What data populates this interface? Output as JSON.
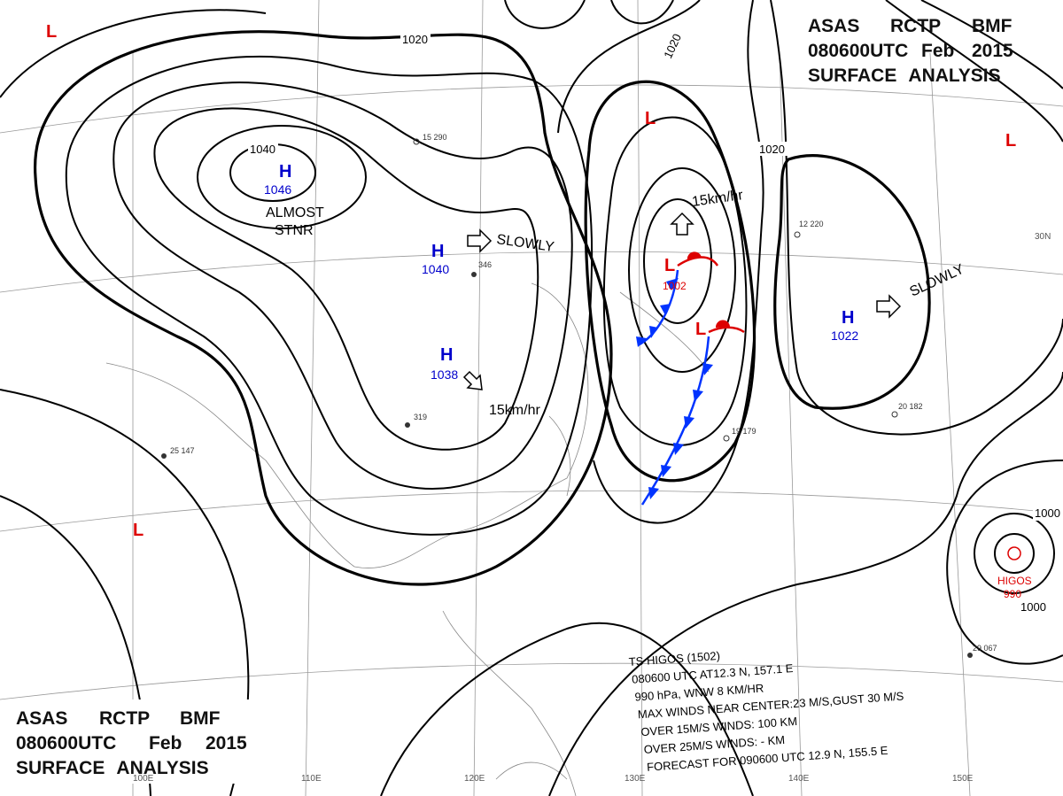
{
  "header_top": {
    "line1": [
      "ASAS",
      "RCTP",
      "BMF"
    ],
    "line2": [
      "080600UTC",
      "Feb",
      "2015"
    ],
    "line3": "SURFACE ANALYSIS"
  },
  "header_bottom": {
    "line1": [
      "ASAS",
      "RCTP",
      "BMF"
    ],
    "line2": [
      "080600UTC",
      "Feb",
      "2015"
    ],
    "line3": "SURFACE ANALYSIS"
  },
  "centers": [
    {
      "symbol": "H",
      "pressure": "1046"
    },
    {
      "symbol": "H",
      "pressure": "1040"
    },
    {
      "symbol": "H",
      "pressure": "1038"
    },
    {
      "symbol": "L",
      "pressure": "1002"
    },
    {
      "symbol": "H",
      "pressure": "1022"
    },
    {
      "symbol": "HIGOS",
      "pressure": "990"
    }
  ],
  "low_marks": [
    "L",
    "L",
    "L",
    "L",
    "L"
  ],
  "isobar_labels": [
    "1020",
    "1040",
    "1020",
    "1020",
    "1000",
    "1000"
  ],
  "motion_labels": [
    "ALMOST",
    "STNR",
    "SLOWLY",
    "15km/hr",
    "15km/hr",
    "SLOWLY"
  ],
  "grid_labels": [
    "100E",
    "110E",
    "120E",
    "130E",
    "140E",
    "150E",
    "30N"
  ],
  "stations": [
    "15 290",
    "346",
    "319",
    "12 220",
    "25 147",
    "19 179",
    "20 182",
    "29 067"
  ],
  "storm_info": [
    "TS HIGOS (1502)",
    "080600 UTC AT12.3 N, 157.1 E",
    "990 hPa, WNW 8 KM/HR",
    "MAX WINDS NEAR CENTER:23 M/S,GUST 30 M/S",
    "OVER 15M/S WINDS: 100 KM",
    "OVER 25M/S WINDS: - KM",
    "FORECAST FOR 090600 UTC 12.9 N, 155.5 E"
  ]
}
